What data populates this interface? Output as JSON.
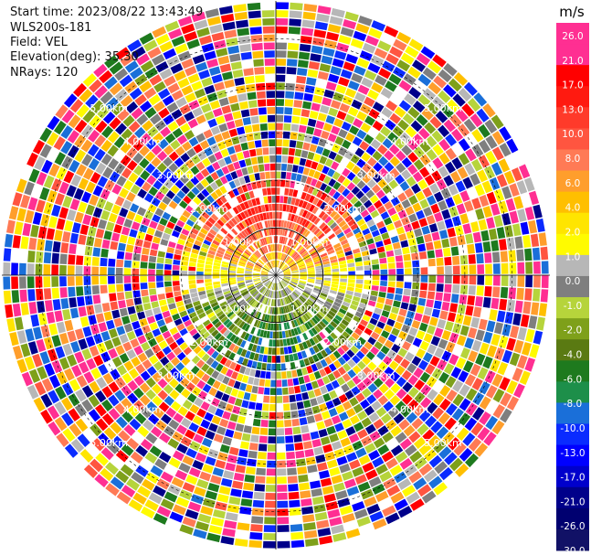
{
  "header": {
    "start_time": "Start time: 2023/08/22 13:43:49",
    "instrument": "WLS200s-181",
    "field": "Field: VEL",
    "elevation": "Elevation(deg): 35.30",
    "nrays": "NRays: 120"
  },
  "chart_data": {
    "type": "heatmap",
    "subtype": "polar-ppi",
    "field": "VEL",
    "n_rays": 120,
    "range_rings_km": [
      1.0,
      2.0,
      3.0,
      4.0,
      5.0
    ],
    "ring_label_texts": [
      "1.00km",
      "2.00km",
      "3.00km",
      "4.00km",
      "5.00km"
    ],
    "max_range_km": 5.8,
    "colorbar": {
      "unit": "m/s",
      "tick_labels": [
        "26.0",
        "21.0",
        "17.0",
        "13.0",
        "10.0",
        "8.0",
        "6.0",
        "4.0",
        "2.0",
        "1.0",
        "0.0",
        "-1.0",
        "-2.0",
        "-4.0",
        "-6.0",
        "-8.0",
        "-10.0",
        "-13.0",
        "-17.0",
        "-21.0",
        "-26.0",
        "-30.0"
      ],
      "colors": [
        "#ff2f92",
        "#ff2f92",
        "#ff0000",
        "#ff1a10",
        "#ff3a2a",
        "#ff5540",
        "#ff7a55",
        "#ff9e2c",
        "#ffbf00",
        "#ffe500",
        "#fffb00",
        "#b7b7b7",
        "#7f7f7f",
        "#b6d43b",
        "#7ea01a",
        "#5a7a12",
        "#1e7a1e",
        "#1d8f4a",
        "#1a6fd9",
        "#0a2bff",
        "#0000ff",
        "#0000cc",
        "#00008a",
        "#000070",
        "#111166"
      ]
    },
    "pattern": {
      "near_field_max_km": 1.9,
      "positive_sector": "north",
      "negative_sector": "south",
      "noise_outside": true
    }
  }
}
